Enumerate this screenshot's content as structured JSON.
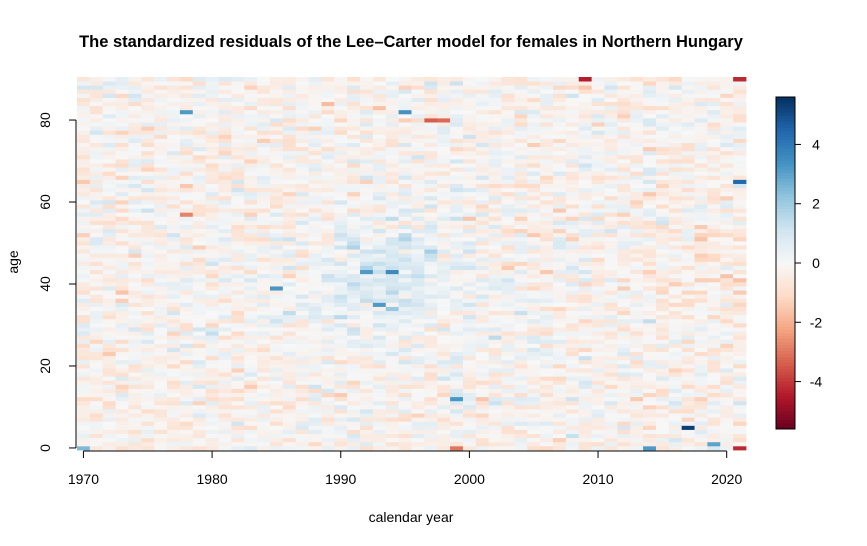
{
  "chart_data": {
    "type": "heatmap",
    "title": "The standardized residuals of the Lee–Carter model for females in Northern Hungary",
    "xlabel": "calendar year",
    "ylabel": "age",
    "x_range": [
      1970,
      2021
    ],
    "y_range": [
      0,
      90
    ],
    "xlim": [
      1969.5,
      2021.5
    ],
    "ylim": [
      -0.5,
      90.5
    ],
    "x_ticks": [
      "1970",
      "1980",
      "1990",
      "2000",
      "2010",
      "2020"
    ],
    "y_ticks": [
      "0",
      "20",
      "40",
      "60",
      "80"
    ],
    "color_scale": {
      "range": [
        -5.6,
        5.6
      ],
      "ticks": [
        "-4",
        "-2",
        "0",
        "2",
        "4"
      ],
      "low_color": "#67001f",
      "mid_color": "#f7f7f7",
      "high_color": "#053061"
    },
    "notable_values": [
      {
        "year": 1970,
        "age": 0,
        "value": 2.5
      },
      {
        "year": 1970,
        "age": 65,
        "value": -1.5
      },
      {
        "year": 1978,
        "age": 82,
        "value": 3.2
      },
      {
        "year": 1978,
        "age": 57,
        "value": -2.8
      },
      {
        "year": 1985,
        "age": 39,
        "value": 3.3
      },
      {
        "year": 1992,
        "age": 43,
        "value": 3.2
      },
      {
        "year": 1993,
        "age": 35,
        "value": 3.2
      },
      {
        "year": 1994,
        "age": 43,
        "value": 3.6
      },
      {
        "year": 1995,
        "age": 82,
        "value": 3.4
      },
      {
        "year": 1997,
        "age": 80,
        "value": -3.4
      },
      {
        "year": 1998,
        "age": 80,
        "value": -3.2
      },
      {
        "year": 1999,
        "age": 0,
        "value": -3.0
      },
      {
        "year": 1999,
        "age": 12,
        "value": 3.3
      },
      {
        "year": 2009,
        "age": 90,
        "value": -4.4
      },
      {
        "year": 2014,
        "age": 0,
        "value": 3.2
      },
      {
        "year": 2017,
        "age": 5,
        "value": 5.3
      },
      {
        "year": 2019,
        "age": 1,
        "value": 3.0
      },
      {
        "year": 2021,
        "age": 0,
        "value": -4.2
      },
      {
        "year": 2021,
        "age": 65,
        "value": 4.4
      },
      {
        "year": 2021,
        "age": 90,
        "value": -4.2
      }
    ]
  }
}
